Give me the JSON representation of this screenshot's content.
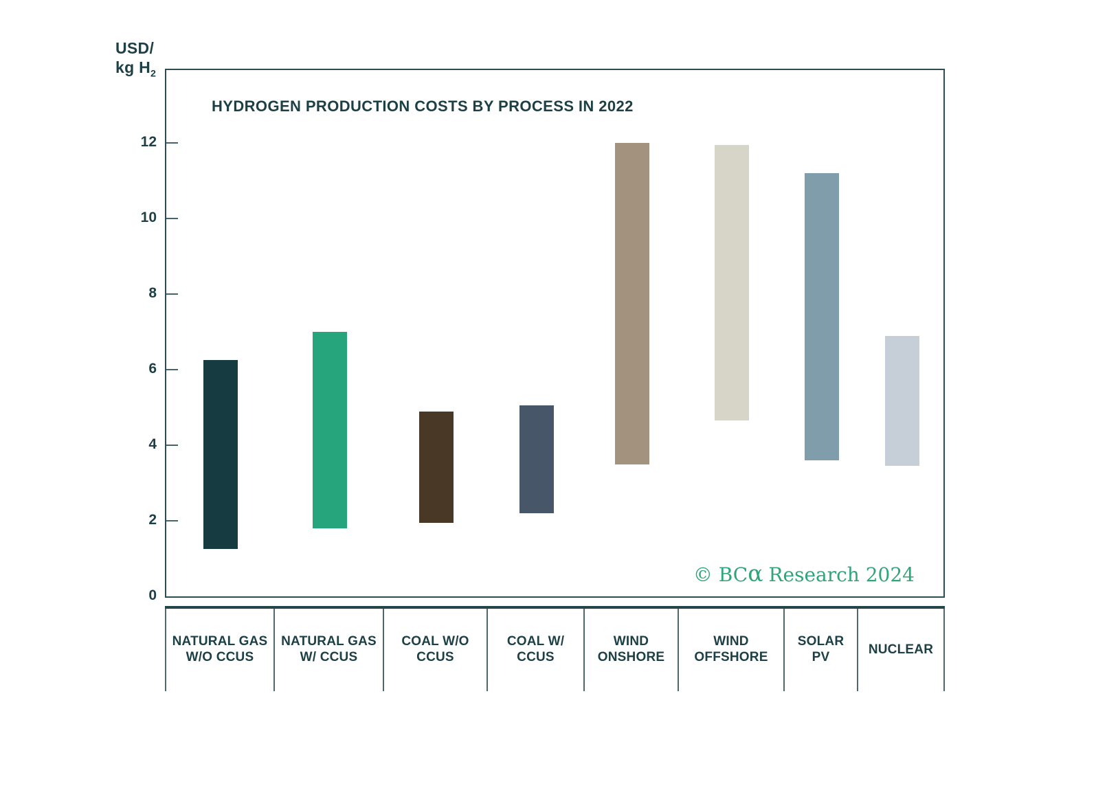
{
  "chart_data": {
    "type": "bar",
    "subtype": "floating-range-bar",
    "title": "HYDROGEN PRODUCTION COSTS BY PROCESS IN 2022",
    "ylabel": "USD/kg H2",
    "y_axis": {
      "unit_line1": "USD/",
      "unit_line2_base": "kg H",
      "unit_subscript": "2",
      "ticks": [
        0,
        2,
        4,
        6,
        8,
        10,
        12
      ],
      "ylim": [
        0,
        13.9
      ],
      "grid": "off",
      "legend": "none"
    },
    "categories": [
      "NATURAL GAS W/O CCUS",
      "NATURAL GAS W/ CCUS",
      "COAL W/O CCUS",
      "COAL W/ CCUS",
      "WIND ONSHORE",
      "WIND OFFSHORE",
      "SOLAR PV",
      "NUCLEAR"
    ],
    "bars": [
      {
        "category": "NATURAL GAS W/O CCUS",
        "low": 1.25,
        "high": 6.25,
        "color": "#163b40"
      },
      {
        "category": "NATURAL GAS W/ CCUS",
        "low": 1.8,
        "high": 7.0,
        "color": "#26a57c"
      },
      {
        "category": "COAL W/O CCUS",
        "low": 1.95,
        "high": 4.9,
        "color": "#493826"
      },
      {
        "category": "COAL W/ CCUS",
        "low": 2.2,
        "high": 5.05,
        "color": "#475669"
      },
      {
        "category": "WIND ONSHORE",
        "low": 3.5,
        "high": 12.0,
        "color": "#a3927e"
      },
      {
        "category": "WIND OFFSHORE",
        "low": 4.65,
        "high": 11.95,
        "color": "#d6d5c7"
      },
      {
        "category": "SOLAR PV",
        "low": 3.6,
        "high": 11.2,
        "color": "#7f9dab"
      },
      {
        "category": "NUCLEAR",
        "low": 3.45,
        "high": 6.9,
        "color": "#c6cfd7"
      }
    ]
  },
  "watermark": {
    "prefix": "© BC",
    "alpha": "α",
    "suffix": " Research 2024",
    "color": "#2fa579"
  },
  "colors": {
    "text_dark": "#1d4046",
    "axis_border": "#2d4d52",
    "tick": "#46626a",
    "divider": "#4f686c"
  }
}
